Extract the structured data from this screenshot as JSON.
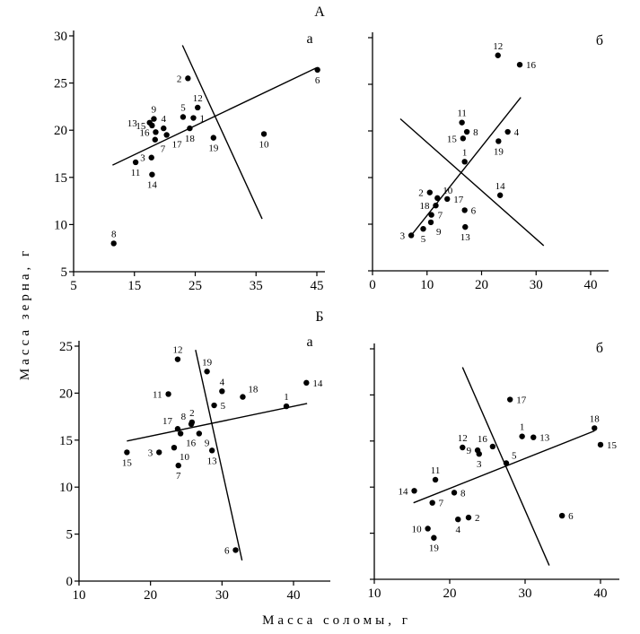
{
  "figure": {
    "group_titles": [
      "А",
      "Б"
    ],
    "ylabel": "Масса зерна, г",
    "xlabel": "Масса соломы, г"
  },
  "chart_data": [
    {
      "type": "scatter",
      "group": "А",
      "panel_label": "а",
      "xlim": [
        5,
        45
      ],
      "ylim": [
        5,
        30
      ],
      "xticks": [
        5,
        15,
        25,
        35,
        45
      ],
      "yticks": [
        5,
        10,
        15,
        20,
        25,
        30
      ],
      "xtick_labels": [
        "5",
        "15",
        "25",
        "35",
        "45"
      ],
      "ytick_labels": [
        "5",
        "10",
        "15",
        "20",
        "25",
        "30"
      ],
      "points": [
        {
          "label": "1",
          "x": 24.7,
          "y": 21.3
        },
        {
          "label": "2",
          "x": 23.8,
          "y": 25.5
        },
        {
          "label": "3",
          "x": 17.8,
          "y": 17.1
        },
        {
          "label": "4",
          "x": 19.8,
          "y": 20.2
        },
        {
          "label": "5",
          "x": 23.0,
          "y": 21.4
        },
        {
          "label": "6",
          "x": 45.1,
          "y": 26.4
        },
        {
          "label": "7",
          "x": 18.4,
          "y": 19.0
        },
        {
          "label": "8",
          "x": 11.6,
          "y": 8.0
        },
        {
          "label": "9",
          "x": 18.2,
          "y": 21.2
        },
        {
          "label": "10",
          "x": 36.3,
          "y": 19.6
        },
        {
          "label": "11",
          "x": 15.2,
          "y": 16.6
        },
        {
          "label": "12",
          "x": 25.4,
          "y": 22.4
        },
        {
          "label": "13",
          "x": 17.5,
          "y": 20.8
        },
        {
          "label": "14",
          "x": 17.9,
          "y": 15.3
        },
        {
          "label": "15",
          "x": 17.9,
          "y": 20.5
        },
        {
          "label": "16",
          "x": 18.5,
          "y": 19.8
        },
        {
          "label": "17",
          "x": 20.3,
          "y": 19.5
        },
        {
          "label": "18",
          "x": 24.1,
          "y": 20.2
        },
        {
          "label": "19",
          "x": 28.0,
          "y": 19.2
        }
      ],
      "lines": [
        [
          11.4,
          16.3,
          44.9,
          26.6
        ],
        [
          22.9,
          29.0,
          36.0,
          10.6
        ]
      ]
    },
    {
      "type": "scatter",
      "group": "А",
      "panel_label": "б",
      "xlim": [
        0,
        40
      ],
      "ylim": [
        5,
        30
      ],
      "xticks": [
        0,
        10,
        20,
        30,
        40
      ],
      "yticks": [
        5,
        10,
        15,
        20,
        25,
        30
      ],
      "xtick_labels": [
        "0",
        "10",
        "20",
        "30",
        "40"
      ],
      "ytick_labels": [],
      "points": [
        {
          "label": "1",
          "x": 16.9,
          "y": 16.7
        },
        {
          "label": "2",
          "x": 10.5,
          "y": 13.4
        },
        {
          "label": "3",
          "x": 7.1,
          "y": 8.8
        },
        {
          "label": "4",
          "x": 24.8,
          "y": 19.9
        },
        {
          "label": "5",
          "x": 9.3,
          "y": 9.5
        },
        {
          "label": "6",
          "x": 16.9,
          "y": 11.5
        },
        {
          "label": "7",
          "x": 10.8,
          "y": 11.0
        },
        {
          "label": "8",
          "x": 17.3,
          "y": 19.9
        },
        {
          "label": "9",
          "x": 10.7,
          "y": 10.2
        },
        {
          "label": "10",
          "x": 11.9,
          "y": 12.8
        },
        {
          "label": "11",
          "x": 16.4,
          "y": 20.9
        },
        {
          "label": "12",
          "x": 23.0,
          "y": 28.1
        },
        {
          "label": "13",
          "x": 17.0,
          "y": 9.7
        },
        {
          "label": "14",
          "x": 23.4,
          "y": 13.1
        },
        {
          "label": "15",
          "x": 16.6,
          "y": 19.2
        },
        {
          "label": "16",
          "x": 27.0,
          "y": 27.1
        },
        {
          "label": "17",
          "x": 13.7,
          "y": 12.7
        },
        {
          "label": "18",
          "x": 11.6,
          "y": 12.0
        },
        {
          "label": "19",
          "x": 23.1,
          "y": 18.9
        }
      ],
      "lines": [
        [
          7.1,
          8.8,
          27.2,
          23.6
        ],
        [
          5.1,
          21.3,
          31.4,
          7.7
        ]
      ]
    },
    {
      "type": "scatter",
      "group": "Б",
      "panel_label": "а",
      "xlim": [
        10,
        45
      ],
      "ylim": [
        0,
        25
      ],
      "xticks": [
        10,
        20,
        30,
        40
      ],
      "yticks": [
        0,
        5,
        10,
        15,
        20,
        25
      ],
      "xtick_labels": [
        "10",
        "20",
        "30",
        "40"
      ],
      "ytick_labels": [
        "0",
        "5",
        "10",
        "15",
        "20",
        "25"
      ],
      "points": [
        {
          "label": "1",
          "x": 39.0,
          "y": 18.6
        },
        {
          "label": "2",
          "x": 25.8,
          "y": 16.9
        },
        {
          "label": "3",
          "x": 21.2,
          "y": 13.7
        },
        {
          "label": "4",
          "x": 30.0,
          "y": 20.2
        },
        {
          "label": "5",
          "x": 28.9,
          "y": 18.7
        },
        {
          "label": "6",
          "x": 31.9,
          "y": 3.3
        },
        {
          "label": "7",
          "x": 23.9,
          "y": 12.3
        },
        {
          "label": "8",
          "x": 25.7,
          "y": 16.7
        },
        {
          "label": "9",
          "x": 26.8,
          "y": 15.7
        },
        {
          "label": "10",
          "x": 23.3,
          "y": 14.2
        },
        {
          "label": "11",
          "x": 22.5,
          "y": 19.9
        },
        {
          "label": "12",
          "x": 23.8,
          "y": 23.6
        },
        {
          "label": "13",
          "x": 28.6,
          "y": 13.9
        },
        {
          "label": "14",
          "x": 41.8,
          "y": 21.1
        },
        {
          "label": "15",
          "x": 16.7,
          "y": 13.7
        },
        {
          "label": "16",
          "x": 24.2,
          "y": 15.7
        },
        {
          "label": "17",
          "x": 23.8,
          "y": 16.2
        },
        {
          "label": "18",
          "x": 32.9,
          "y": 19.6
        },
        {
          "label": "19",
          "x": 27.9,
          "y": 22.3
        }
      ],
      "lines": [
        [
          16.7,
          14.9,
          41.9,
          18.9
        ],
        [
          26.3,
          24.6,
          32.8,
          2.2
        ]
      ]
    },
    {
      "type": "scatter",
      "group": "Б",
      "panel_label": "б",
      "xlim": [
        10,
        42
      ],
      "ylim": [
        0,
        25
      ],
      "xticks": [
        10,
        20,
        30,
        40
      ],
      "yticks": [
        0,
        5,
        10,
        15,
        20,
        25
      ],
      "xtick_labels": [
        "10",
        "20",
        "30",
        "40"
      ],
      "ytick_labels": [],
      "points": [
        {
          "label": "1",
          "x": 29.6,
          "y": 15.5
        },
        {
          "label": "2",
          "x": 22.5,
          "y": 6.7
        },
        {
          "label": "3",
          "x": 23.9,
          "y": 13.6
        },
        {
          "label": "4",
          "x": 21.1,
          "y": 6.5
        },
        {
          "label": "5",
          "x": 27.5,
          "y": 12.6
        },
        {
          "label": "6",
          "x": 34.9,
          "y": 6.9
        },
        {
          "label": "7",
          "x": 17.7,
          "y": 8.3
        },
        {
          "label": "8",
          "x": 20.6,
          "y": 9.4
        },
        {
          "label": "9",
          "x": 23.7,
          "y": 14.0
        },
        {
          "label": "10",
          "x": 17.1,
          "y": 5.5
        },
        {
          "label": "11",
          "x": 18.1,
          "y": 10.8
        },
        {
          "label": "12",
          "x": 21.7,
          "y": 14.3
        },
        {
          "label": "13",
          "x": 31.1,
          "y": 15.4
        },
        {
          "label": "14",
          "x": 15.3,
          "y": 9.6
        },
        {
          "label": "15",
          "x": 40.0,
          "y": 14.6
        },
        {
          "label": "16",
          "x": 25.7,
          "y": 14.4
        },
        {
          "label": "17",
          "x": 28.0,
          "y": 19.5
        },
        {
          "label": "18",
          "x": 39.2,
          "y": 16.4
        },
        {
          "label": "19",
          "x": 17.9,
          "y": 4.5
        }
      ],
      "lines": [
        [
          15.2,
          8.3,
          39.2,
          16.1
        ],
        [
          21.7,
          23.0,
          33.2,
          1.5
        ]
      ]
    }
  ]
}
